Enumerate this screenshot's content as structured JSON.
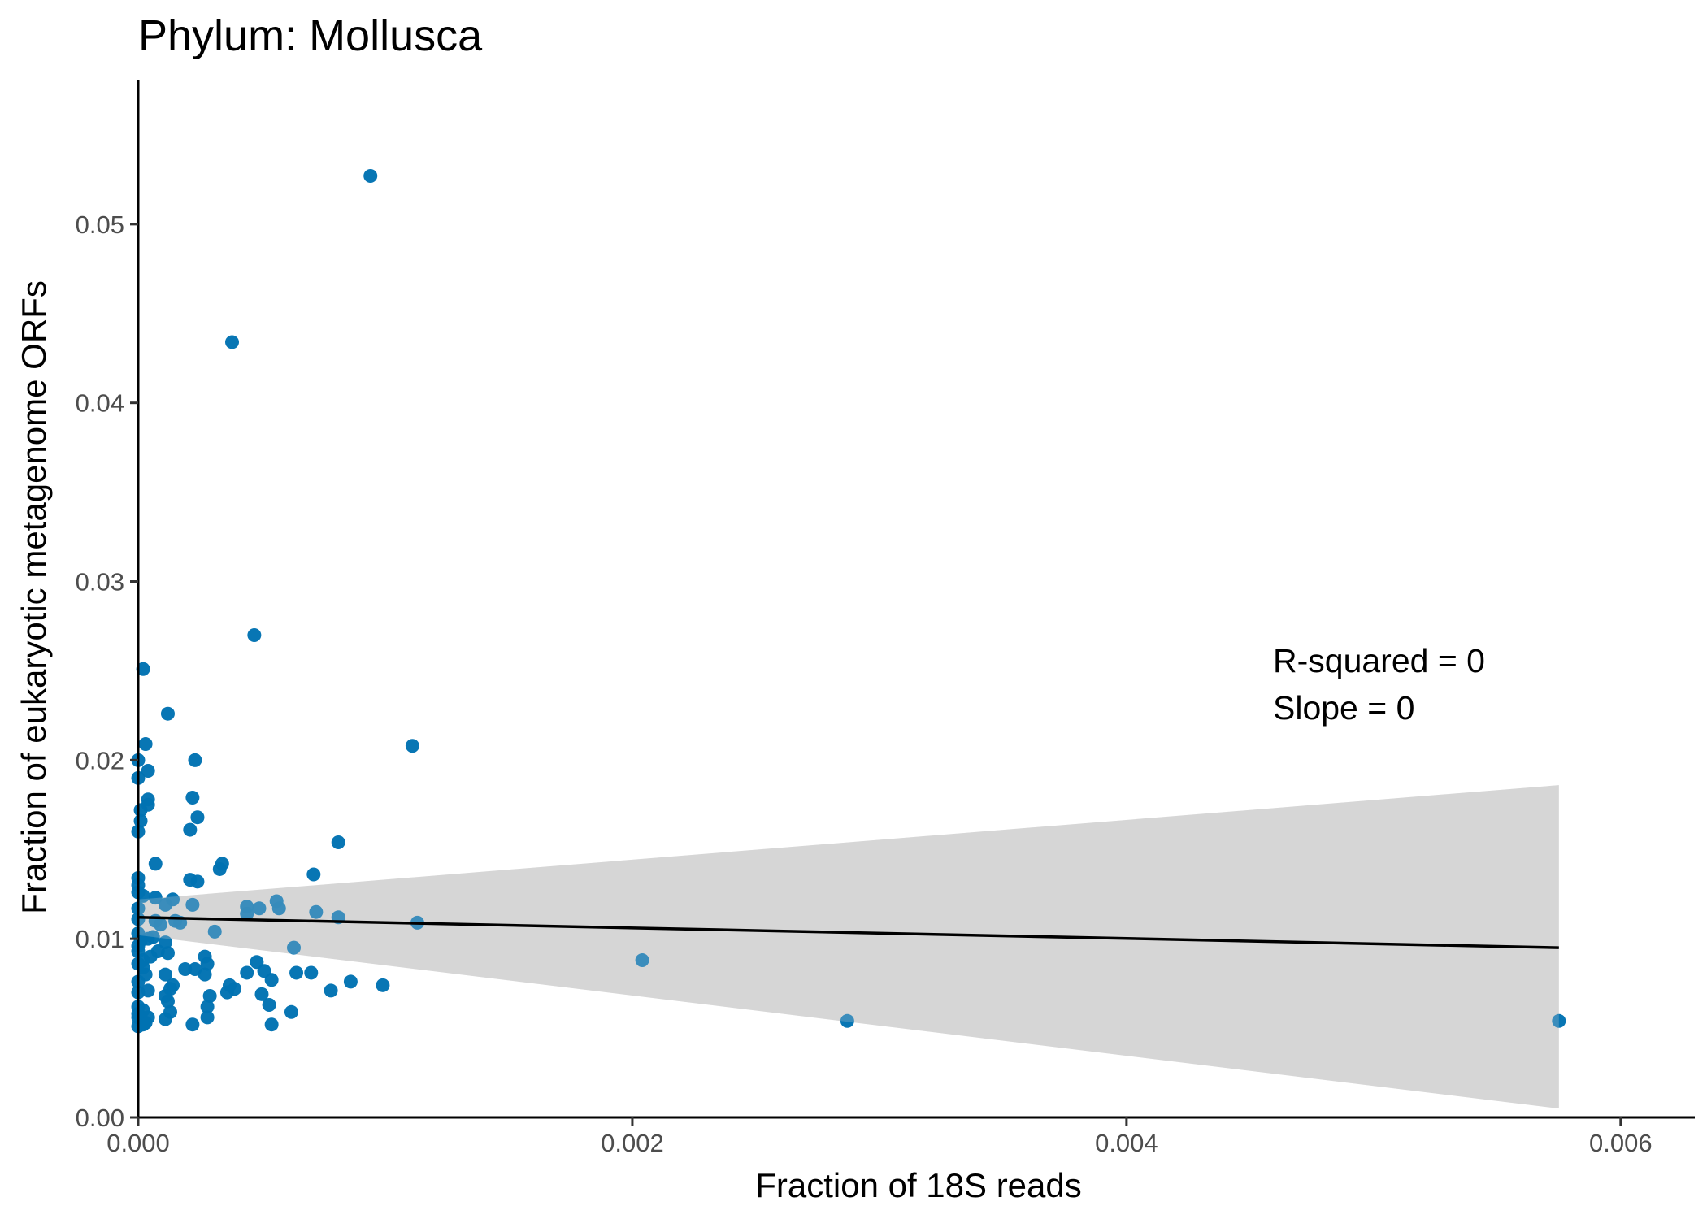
{
  "chart_data": {
    "type": "scatter",
    "title": "Phylum:  Mollusca",
    "xlabel": "Fraction of 18S reads",
    "ylabel": "Fraction of eukaryotic metagenome ORFs",
    "xlim": [
      0,
      0.0063
    ],
    "ylim": [
      0,
      0.058
    ],
    "x_ticks": [
      0,
      0.002,
      0.004,
      0.006
    ],
    "x_tick_labels": [
      "0.000",
      "0.002",
      "0.004",
      "0.006"
    ],
    "y_ticks": [
      0,
      0.01,
      0.02,
      0.03,
      0.04,
      0.05
    ],
    "y_tick_labels": [
      "0.00",
      "0.01",
      "0.02",
      "0.03",
      "0.04",
      "0.05"
    ],
    "grid": false,
    "legend": "none",
    "point_color": "#0072B2",
    "band_color": "#d6d6d6",
    "line_color": "#000000",
    "annotations": [
      "R-squared =  0",
      "Slope =  0"
    ],
    "fit": {
      "x": [
        0,
        0.00575
      ],
      "y": [
        0.0112,
        0.0095
      ],
      "band_upper": [
        0.0122,
        0.0186
      ],
      "band_lower": [
        0.0102,
        0.0005
      ]
    },
    "points": [
      [
        0.00094,
        0.0527
      ],
      [
        0.00038,
        0.0434
      ],
      [
        0.00047,
        0.027
      ],
      [
        2e-05,
        0.0251
      ],
      [
        0.00012,
        0.0226
      ],
      [
        0.00111,
        0.0208
      ],
      [
        3e-05,
        0.0209
      ],
      [
        0.00023,
        0.02
      ],
      [
        4e-05,
        0.0194
      ],
      [
        0.0,
        0.02
      ],
      [
        0.0,
        0.019
      ],
      [
        0.00022,
        0.0179
      ],
      [
        4e-05,
        0.0178
      ],
      [
        4e-05,
        0.0175
      ],
      [
        1e-05,
        0.0172
      ],
      [
        0.00024,
        0.0168
      ],
      [
        1e-05,
        0.0166
      ],
      [
        0.00021,
        0.0161
      ],
      [
        0.0,
        0.016
      ],
      [
        0.00081,
        0.0154
      ],
      [
        0.00034,
        0.0142
      ],
      [
        7e-05,
        0.0142
      ],
      [
        0.00033,
        0.0139
      ],
      [
        0.00071,
        0.0136
      ],
      [
        0.00021,
        0.0133
      ],
      [
        0.00024,
        0.0132
      ],
      [
        0.0,
        0.0134
      ],
      [
        0.0,
        0.013
      ],
      [
        2e-05,
        0.0124
      ],
      [
        7e-05,
        0.0123
      ],
      [
        0.00014,
        0.0122
      ],
      [
        0.00056,
        0.0121
      ],
      [
        0.00011,
        0.0119
      ],
      [
        0.00022,
        0.0119
      ],
      [
        0.00044,
        0.0118
      ],
      [
        0.00049,
        0.0117
      ],
      [
        0.00057,
        0.0117
      ],
      [
        0.00044,
        0.0114
      ],
      [
        0.00072,
        0.0115
      ],
      [
        0.00081,
        0.0112
      ],
      [
        0.00113,
        0.0109
      ],
      [
        0.00015,
        0.011
      ],
      [
        0.00017,
        0.0109
      ],
      [
        9e-05,
        0.0108
      ],
      [
        7e-05,
        0.011
      ],
      [
        0.0,
        0.0111
      ],
      [
        0.00031,
        0.0104
      ],
      [
        4e-05,
        0.01
      ],
      [
        0.00011,
        0.0098
      ],
      [
        0.0,
        0.0096
      ],
      [
        0.00063,
        0.0095
      ],
      [
        8e-05,
        0.0093
      ],
      [
        0.00012,
        0.0092
      ],
      [
        0.00027,
        0.009
      ],
      [
        2e-05,
        0.0088
      ],
      [
        0.00048,
        0.0087
      ],
      [
        0.00204,
        0.0088
      ],
      [
        0.00028,
        0.0086
      ],
      [
        0.00019,
        0.0083
      ],
      [
        0.00023,
        0.0083
      ],
      [
        0.00044,
        0.0081
      ],
      [
        0.00051,
        0.0082
      ],
      [
        0.00064,
        0.0081
      ],
      [
        0.0007,
        0.0081
      ],
      [
        0.00011,
        0.008
      ],
      [
        0.00027,
        0.008
      ],
      [
        3e-05,
        0.008
      ],
      [
        0.00054,
        0.0077
      ],
      [
        0.00086,
        0.0076
      ],
      [
        0.00099,
        0.0074
      ],
      [
        0.00014,
        0.0074
      ],
      [
        0.00037,
        0.0074
      ],
      [
        0.00013,
        0.0072
      ],
      [
        0.00039,
        0.0072
      ],
      [
        0.00078,
        0.0071
      ],
      [
        4e-05,
        0.0071
      ],
      [
        0.00036,
        0.007
      ],
      [
        0.0005,
        0.0069
      ],
      [
        0.00029,
        0.0068
      ],
      [
        0.00011,
        0.0068
      ],
      [
        0.00012,
        0.0065
      ],
      [
        0.00053,
        0.0063
      ],
      [
        0.00028,
        0.0062
      ],
      [
        2e-05,
        0.006
      ],
      [
        0.00062,
        0.0059
      ],
      [
        0.00013,
        0.0059
      ],
      [
        0.00028,
        0.0056
      ],
      [
        0.0,
        0.0056
      ],
      [
        4e-05,
        0.0056
      ],
      [
        0.00011,
        0.0055
      ],
      [
        0.00287,
        0.0054
      ],
      [
        0.00575,
        0.0054
      ],
      [
        0.00054,
        0.0052
      ],
      [
        0.00022,
        0.0052
      ],
      [
        2e-05,
        0.0052
      ],
      [
        0.0,
        0.0051
      ],
      [
        3e-05,
        0.0053
      ],
      [
        0.0,
        0.0058
      ],
      [
        0.0,
        0.0062
      ],
      [
        0.0,
        0.007
      ],
      [
        0.0,
        0.0076
      ],
      [
        0.0,
        0.0086
      ],
      [
        0.0,
        0.0093
      ],
      [
        0.0,
        0.0103
      ],
      [
        0.0,
        0.0117
      ],
      [
        0.0,
        0.0126
      ],
      [
        1e-05,
        0.0099
      ],
      [
        2e-05,
        0.0084
      ],
      [
        5e-05,
        0.009
      ],
      [
        6e-05,
        0.0101
      ]
    ]
  }
}
